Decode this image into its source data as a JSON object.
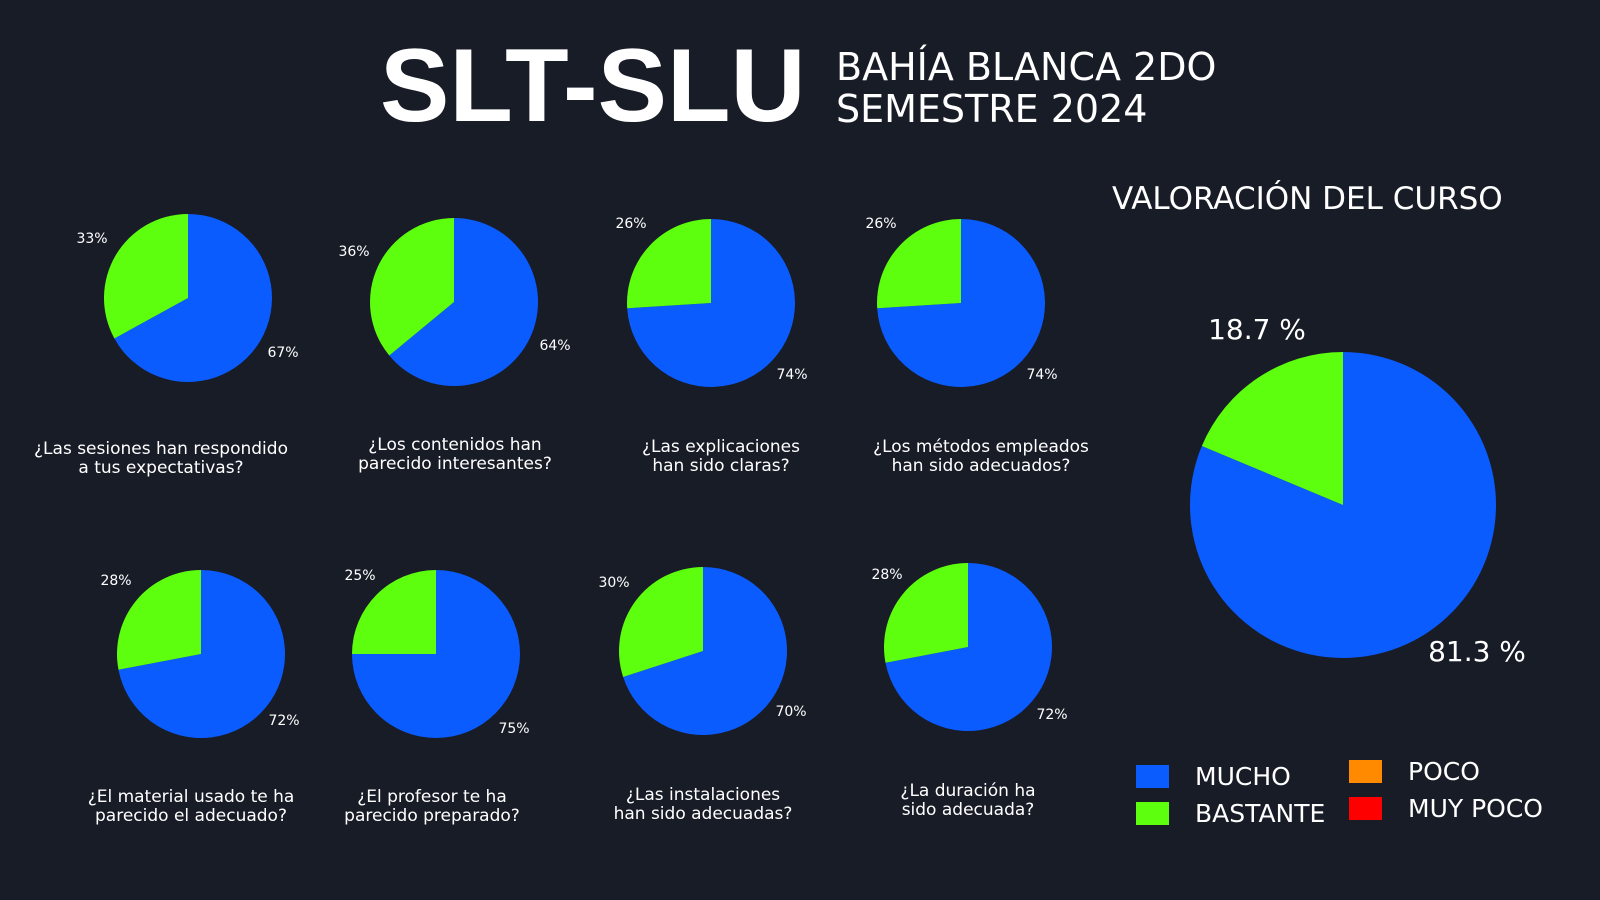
{
  "header": {
    "title": "SLT-SLU",
    "subtitle": "BAHÍA BLANCA  2DO\nSEMESTRE 2024"
  },
  "colors": {
    "mucho": "#0b5cff",
    "bastante": "#5dff0e",
    "poco": "#ff8a00",
    "muy_poco": "#ff0000"
  },
  "legend": [
    {
      "label": "MUCHO",
      "color": "#0b5cff"
    },
    {
      "label": "BASTANTE",
      "color": "#5dff0e"
    },
    {
      "label": "POCO",
      "color": "#ff8a00"
    },
    {
      "label": "MUY POCO",
      "color": "#ff0000"
    }
  ],
  "chart_data": [
    {
      "type": "pie",
      "question": "¿Las sesiones han respondido\na tus expectativas?",
      "categories": [
        "MUCHO",
        "BASTANTE"
      ],
      "values": [
        67,
        33
      ],
      "labels": [
        "67%",
        "33%"
      ]
    },
    {
      "type": "pie",
      "question": "¿Los contenidos han\nparecido interesantes?",
      "categories": [
        "MUCHO",
        "BASTANTE"
      ],
      "values": [
        64,
        36
      ],
      "labels": [
        "64%",
        "36%"
      ]
    },
    {
      "type": "pie",
      "question": "¿Las explicaciones\nhan sido claras?",
      "categories": [
        "MUCHO",
        "BASTANTE"
      ],
      "values": [
        74,
        26
      ],
      "labels": [
        "74%",
        "26%"
      ]
    },
    {
      "type": "pie",
      "question": "¿Los métodos empleados\nhan sido adecuados?",
      "categories": [
        "MUCHO",
        "BASTANTE"
      ],
      "values": [
        74,
        26
      ],
      "labels": [
        "74%",
        "26%"
      ]
    },
    {
      "type": "pie",
      "question": "¿El material usado te ha\nparecido el adecuado?",
      "categories": [
        "MUCHO",
        "BASTANTE"
      ],
      "values": [
        72,
        28
      ],
      "labels": [
        "72%",
        "28%"
      ]
    },
    {
      "type": "pie",
      "question": "¿El profesor te ha\nparecido preparado?",
      "categories": [
        "MUCHO",
        "BASTANTE"
      ],
      "values": [
        75,
        25
      ],
      "labels": [
        "75%",
        "25%"
      ]
    },
    {
      "type": "pie",
      "question": "¿Las instalaciones\nhan sido adecuadas?",
      "categories": [
        "MUCHO",
        "BASTANTE"
      ],
      "values": [
        70,
        30
      ],
      "labels": [
        "70%",
        "30%"
      ]
    },
    {
      "type": "pie",
      "question": "¿La duración ha\nsido adecuada?",
      "categories": [
        "MUCHO",
        "BASTANTE"
      ],
      "values": [
        72,
        28
      ],
      "labels": [
        "72%",
        "28%"
      ]
    },
    {
      "type": "pie",
      "title": "VALORACIÓN DEL CURSO",
      "categories": [
        "MUCHO",
        "BASTANTE"
      ],
      "values": [
        81.3,
        18.7
      ],
      "labels": [
        "81.3 %",
        "18.7 %"
      ]
    }
  ]
}
